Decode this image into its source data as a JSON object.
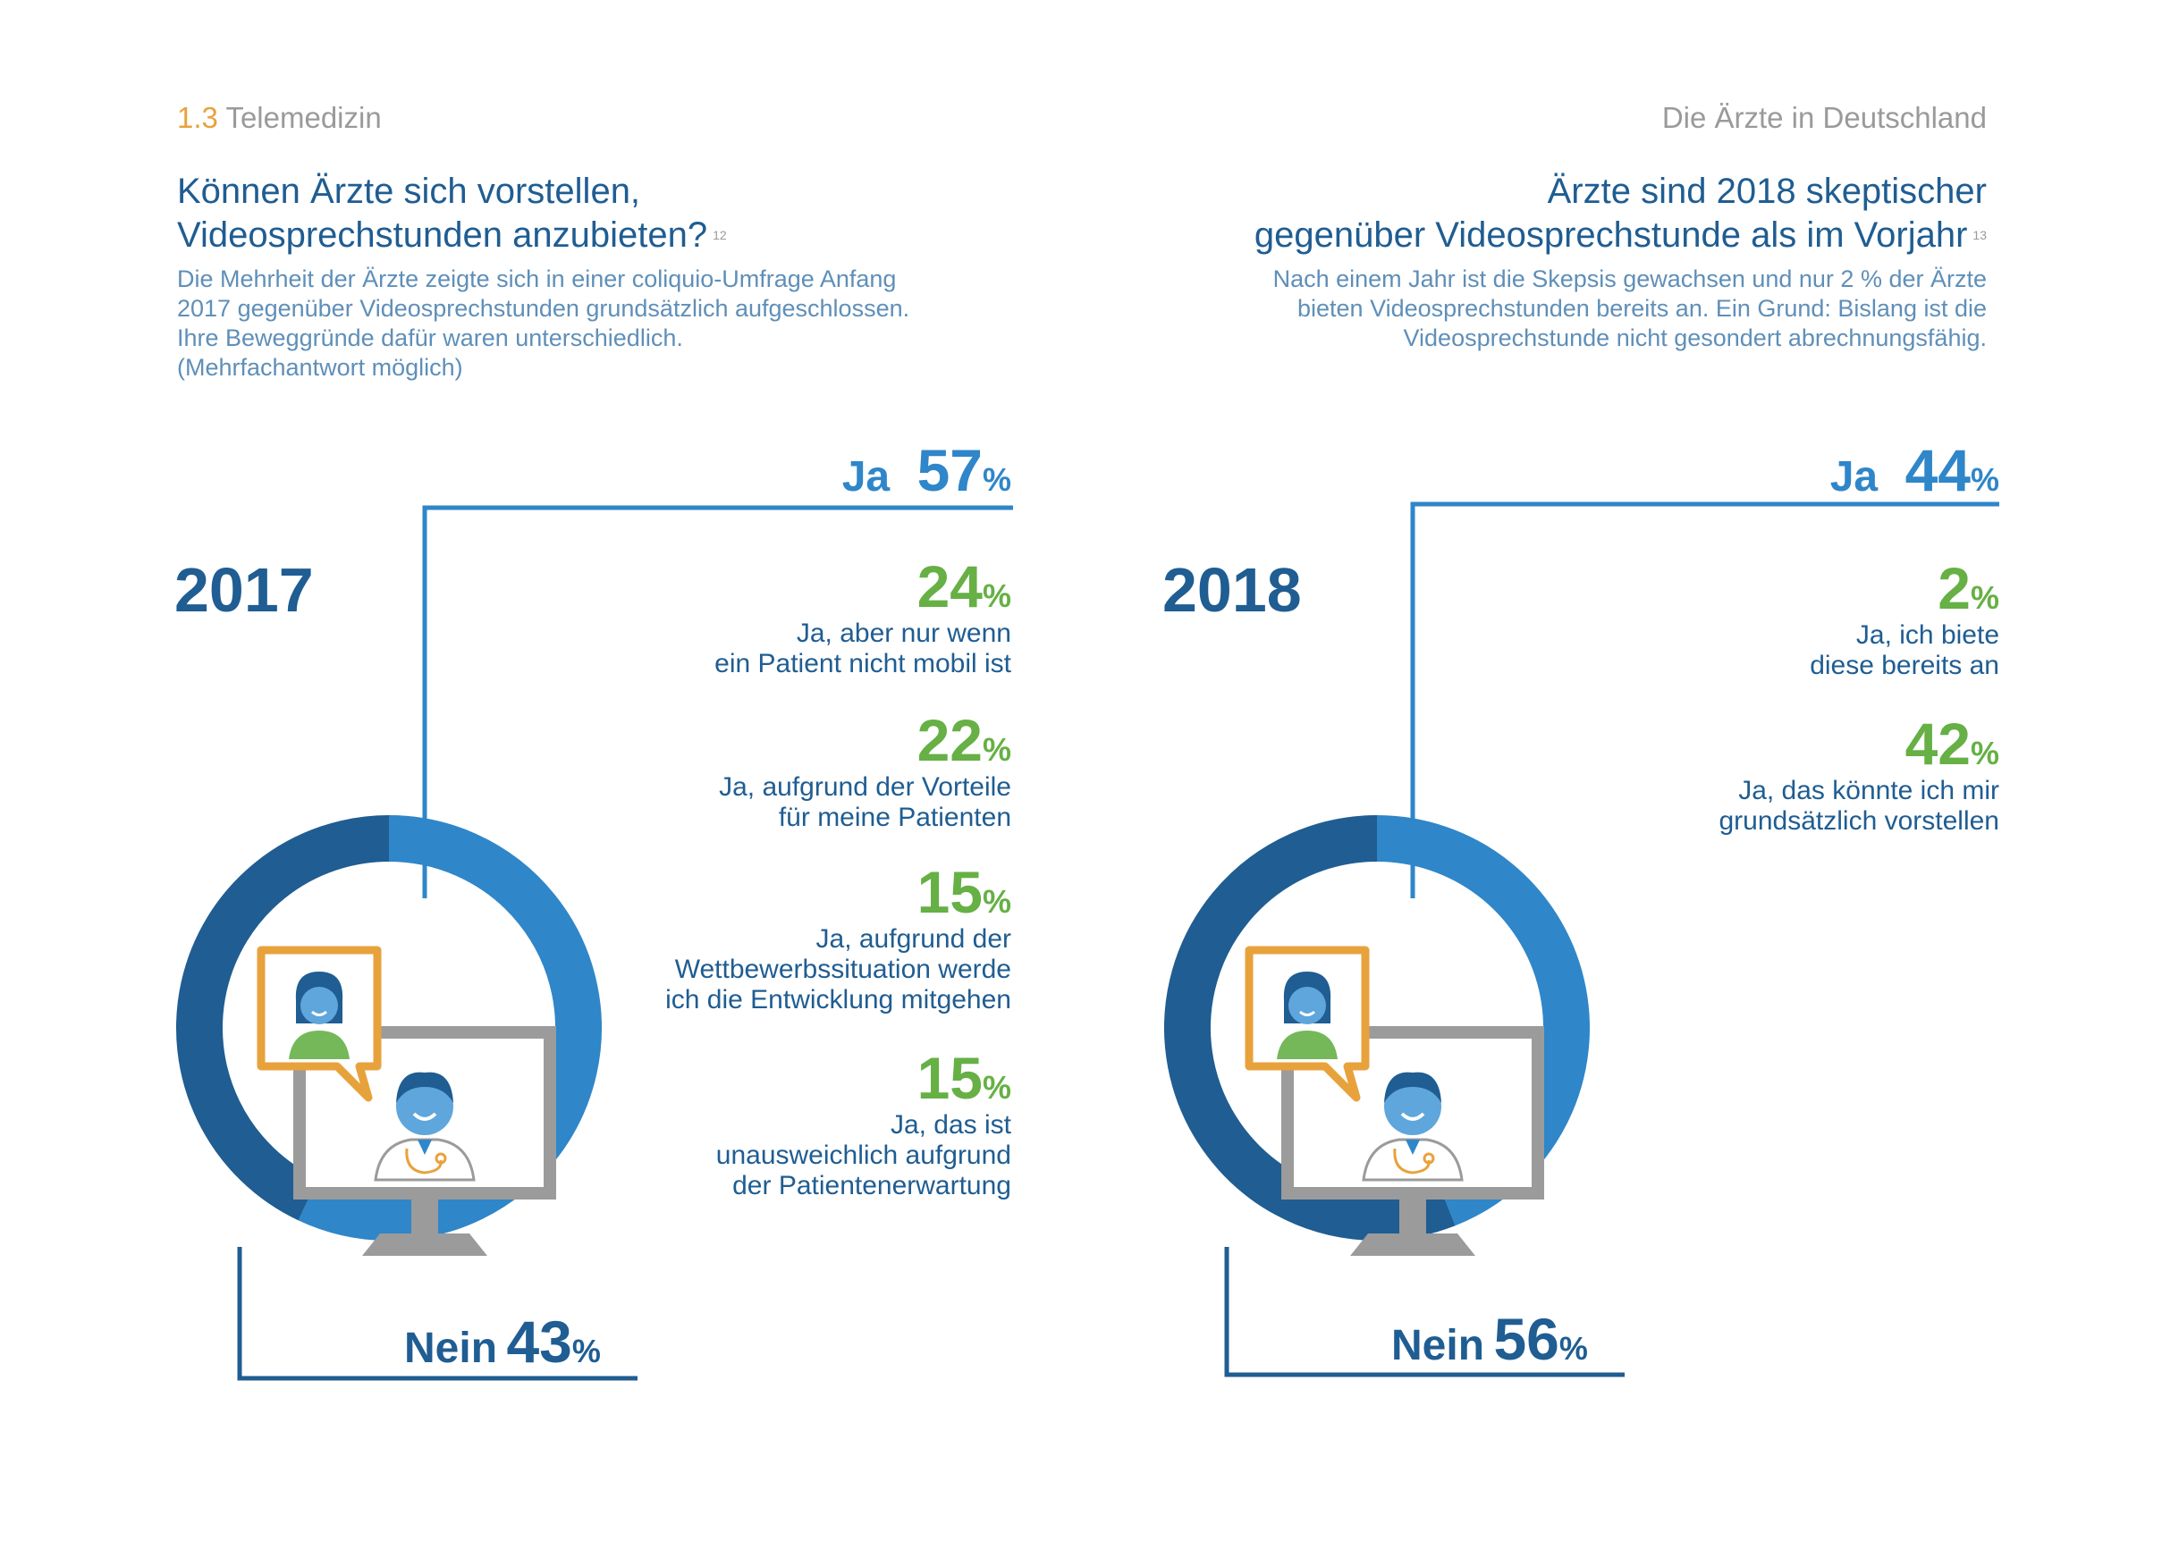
{
  "header": {
    "section_number": "1.3",
    "section_title": "Telemedizin",
    "publication": "Die Ärzte in Deutschland"
  },
  "left": {
    "title_line1": "Können Ärzte sich vorstellen,",
    "title_line2": "Videosprechstunden anzubieten?",
    "footnote": "12",
    "intro": [
      "Die Mehrheit der Ärzte zeigte sich in einer coliquio-Umfrage Anfang",
      "2017 gegenüber Videosprechstunden grundsätzlich aufgeschlossen.",
      "Ihre Beweggründe dafür waren unterschiedlich.",
      "(Mehrfachantwort möglich)"
    ]
  },
  "right": {
    "title_line1": "Ärzte sind 2018 skeptischer",
    "title_line2": "gegenüber Videosprechstunde als im Vorjahr",
    "footnote": "13",
    "intro": [
      "Nach einem Jahr ist die Skepsis gewachsen und nur 2 % der Ärzte",
      "bieten Videosprechstunden bereits an. Ein Grund: Bislang ist die",
      "Videosprechstunde nicht gesondert abrechnungsfähig."
    ]
  },
  "colors": {
    "ja": "#2f86c9",
    "nein": "#1f5d92",
    "sub": "#66b045",
    "bubble": "#e8a23c",
    "monitor": "#9b9b9b"
  },
  "chart_data": [
    {
      "type": "pie",
      "year": "2017",
      "ja_label": "Ja",
      "nein_label": "Nein",
      "percent_sign": "%",
      "categories": [
        "Ja",
        "Nein"
      ],
      "values": [
        57,
        43
      ],
      "ja_value": "57",
      "nein_value": "43",
      "breakdown": [
        {
          "value": "24",
          "label": [
            "Ja, aber nur wenn",
            "ein Patient nicht mobil ist"
          ]
        },
        {
          "value": "22",
          "label": [
            "Ja, aufgrund der Vorteile",
            "für meine Patienten"
          ]
        },
        {
          "value": "15",
          "label": [
            "Ja, aufgrund der",
            "Wettbewerbssituation werde",
            "ich die Entwicklung mitgehen"
          ]
        },
        {
          "value": "15",
          "label": [
            "Ja, das ist",
            "unausweichlich aufgrund",
            "der Patientenerwartung"
          ]
        }
      ]
    },
    {
      "type": "pie",
      "year": "2018",
      "ja_label": "Ja",
      "nein_label": "Nein",
      "percent_sign": "%",
      "categories": [
        "Ja",
        "Nein"
      ],
      "values": [
        44,
        56
      ],
      "ja_value": "44",
      "nein_value": "56",
      "breakdown": [
        {
          "value": "2",
          "label": [
            "Ja, ich biete",
            "diese bereits an"
          ]
        },
        {
          "value": "42",
          "label": [
            "Ja, das könnte ich mir",
            "grundsätzlich vorstellen"
          ]
        }
      ]
    }
  ]
}
